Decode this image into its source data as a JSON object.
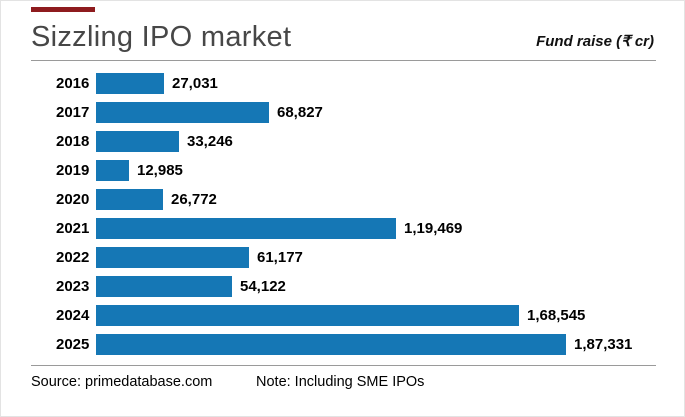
{
  "chart_data": {
    "type": "bar",
    "orientation": "horizontal",
    "title": "Sizzling IPO market",
    "unit_label": "Fund raise (₹ cr)",
    "categories": [
      "2016",
      "2017",
      "2018",
      "2019",
      "2020",
      "2021",
      "2022",
      "2023",
      "2024",
      "2025"
    ],
    "values": [
      27031,
      68827,
      33246,
      12985,
      26772,
      119469,
      61177,
      54122,
      168545,
      187331
    ],
    "value_labels": [
      "27,031",
      "68,827",
      "33,246",
      "12,985",
      "26,772",
      "1,19,469",
      "61,177",
      "54,122",
      "1,68,545",
      "1,87,331"
    ],
    "bar_color": "#1577b5",
    "accent_color": "#8e1b1e",
    "xlim": [
      0,
      190000
    ],
    "grid": false,
    "legend": false,
    "value_labels_position": "end-of-bar"
  },
  "footer": {
    "source": "Source: primedatabase.com",
    "note": "Note: Including SME IPOs"
  }
}
